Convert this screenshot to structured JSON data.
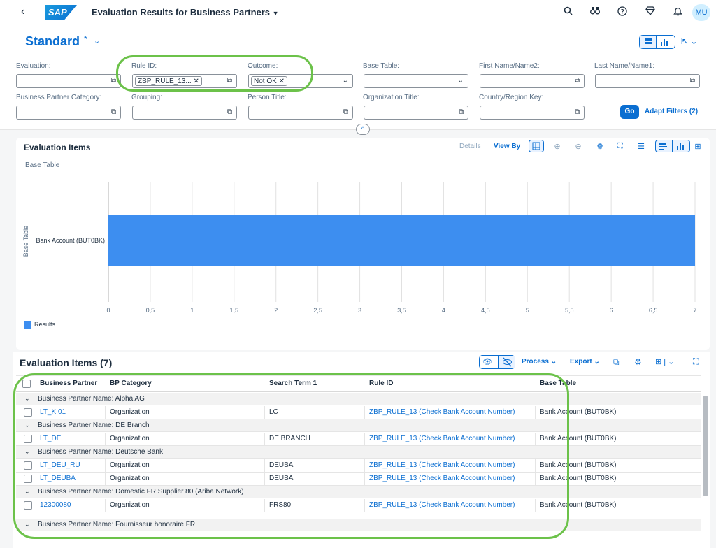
{
  "shell": {
    "app_title": "Evaluation Results for Business Partners",
    "logo_text": "SAP",
    "avatar": "MU",
    "icons": [
      "search-icon",
      "binoculars-icon",
      "help-icon",
      "diamond-icon",
      "bell-icon"
    ]
  },
  "variant": {
    "name": "Standard",
    "modified": "*"
  },
  "filters": {
    "evaluation_label": "Evaluation:",
    "rule_id_label": "Rule ID:",
    "rule_id_token": "ZBP_RULE_13...",
    "outcome_label": "Outcome:",
    "outcome_token": "Not OK",
    "base_table_label": "Base Table:",
    "first_name_label": "First Name/Name2:",
    "last_name_label": "Last Name/Name1:",
    "bp_category_label": "Business Partner Category:",
    "grouping_label": "Grouping:",
    "person_title_label": "Person Title:",
    "org_title_label": "Organization Title:",
    "country_label": "Country/Region Key:",
    "go": "Go",
    "adapt": "Adapt Filters (2)"
  },
  "chart_toolbar": {
    "title": "Evaluation Items",
    "details": "Details",
    "view_by": "View By"
  },
  "chart_data": {
    "type": "bar",
    "orientation": "horizontal",
    "title": "Base Table",
    "ylabel": "Base Table",
    "categories": [
      "Bank Account (BUT0BK)"
    ],
    "series": [
      {
        "name": "Results",
        "values": [
          7
        ],
        "color": "#3d8ef0"
      }
    ],
    "xlim": [
      0,
      7
    ],
    "xticks": [
      "0",
      "0,5",
      "1",
      "1,5",
      "2",
      "2,5",
      "3",
      "3,5",
      "4",
      "4,5",
      "5",
      "5,5",
      "6",
      "6,5",
      "7"
    ],
    "grid": true,
    "legend": "bottom-left"
  },
  "table": {
    "title": "Evaluation Items (7)",
    "process": "Process",
    "export": "Export",
    "columns": [
      "Business Partner",
      "BP Category",
      "Search Term 1",
      "Rule ID",
      "Base Table"
    ],
    "groups": [
      {
        "label": "Business Partner Name: Alpha AG",
        "rows": [
          {
            "bp": "LT_KI01",
            "cat": "Organization",
            "search": "LC",
            "rule": "ZBP_RULE_13 (Check Bank Account Number)",
            "base": "Bank Account (BUT0BK)"
          }
        ]
      },
      {
        "label": "Business Partner Name: DE Branch",
        "rows": [
          {
            "bp": "LT_DE",
            "cat": "Organization",
            "search": "DE BRANCH",
            "rule": "ZBP_RULE_13 (Check Bank Account Number)",
            "base": "Bank Account (BUT0BK)"
          }
        ]
      },
      {
        "label": "Business Partner Name: Deutsche Bank",
        "rows": [
          {
            "bp": "LT_DEU_RU",
            "cat": "Organization",
            "search": "DEUBA",
            "rule": "ZBP_RULE_13 (Check Bank Account Number)",
            "base": "Bank Account (BUT0BK)"
          },
          {
            "bp": "LT_DEUBA",
            "cat": "Organization",
            "search": "DEUBA",
            "rule": "ZBP_RULE_13 (Check Bank Account Number)",
            "base": "Bank Account (BUT0BK)"
          }
        ]
      },
      {
        "label": "Business Partner Name: Domestic FR Supplier 80 (Ariba Network)",
        "rows": [
          {
            "bp": "12300080",
            "cat": "Organization",
            "search": "FRS80",
            "rule": "ZBP_RULE_13 (Check Bank Account Number)",
            "base": "Bank Account (BUT0BK)"
          }
        ]
      },
      {
        "label": "Business Partner Name: Fournisseur honoraire FR",
        "rows": []
      }
    ]
  }
}
